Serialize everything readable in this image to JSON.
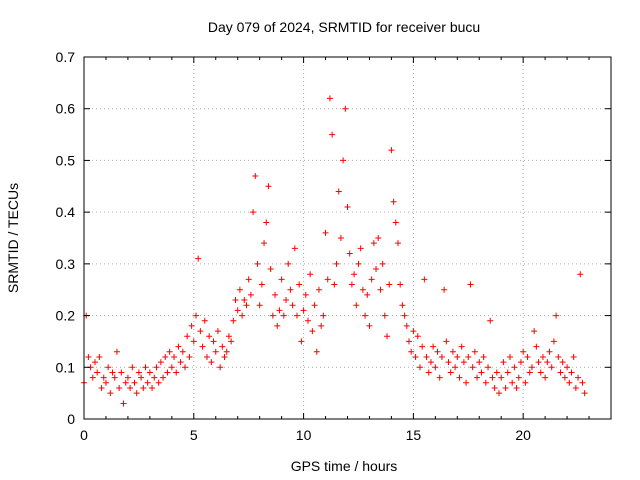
{
  "chart_data": {
    "type": "scatter",
    "title": "Day 079 of 2024, SRMTID for receiver bucu",
    "xlabel": "GPS time / hours",
    "ylabel": "SRMTID / TECUs",
    "xlim": [
      0,
      24
    ],
    "ylim": [
      0,
      0.7
    ],
    "xticks": [
      0,
      5,
      10,
      15,
      20
    ],
    "xtick_labels": [
      "0",
      "5",
      "10",
      "15",
      "20"
    ],
    "yticks": [
      0,
      0.1,
      0.2,
      0.3,
      0.4,
      0.5,
      0.6,
      0.7
    ],
    "ytick_labels": [
      "0",
      "0.1",
      "0.2",
      "0.3",
      "0.4",
      "0.5",
      "0.6",
      "0.7"
    ],
    "grid": true,
    "marker": "+",
    "color": "#ff0000",
    "series": [
      {
        "name": "SRMTID",
        "x": [
          0.0,
          0.1,
          0.2,
          0.3,
          0.4,
          0.5,
          0.6,
          0.7,
          0.8,
          0.9,
          1.0,
          1.1,
          1.2,
          1.3,
          1.4,
          1.5,
          1.6,
          1.7,
          1.8,
          1.9,
          2.0,
          2.1,
          2.2,
          2.3,
          2.4,
          2.5,
          2.6,
          2.7,
          2.8,
          2.9,
          3.0,
          3.1,
          3.2,
          3.3,
          3.4,
          3.5,
          3.6,
          3.7,
          3.8,
          3.9,
          4.0,
          4.1,
          4.2,
          4.3,
          4.4,
          4.5,
          4.6,
          4.7,
          4.8,
          4.9,
          5.0,
          5.1,
          5.2,
          5.3,
          5.4,
          5.5,
          5.6,
          5.7,
          5.8,
          5.9,
          6.0,
          6.1,
          6.2,
          6.3,
          6.4,
          6.5,
          6.6,
          6.7,
          6.8,
          6.9,
          7.0,
          7.1,
          7.2,
          7.3,
          7.4,
          7.5,
          7.6,
          7.7,
          7.8,
          7.9,
          8.0,
          8.1,
          8.2,
          8.3,
          8.4,
          8.5,
          8.6,
          8.7,
          8.8,
          8.9,
          9.0,
          9.1,
          9.2,
          9.3,
          9.4,
          9.5,
          9.6,
          9.7,
          9.8,
          9.9,
          10.0,
          10.1,
          10.2,
          10.3,
          10.4,
          10.5,
          10.6,
          10.7,
          10.8,
          10.9,
          11.0,
          11.1,
          11.2,
          11.3,
          11.4,
          11.5,
          11.6,
          11.7,
          11.8,
          11.9,
          12.0,
          12.1,
          12.2,
          12.3,
          12.4,
          12.5,
          12.6,
          12.7,
          12.8,
          12.9,
          13.0,
          13.1,
          13.2,
          13.3,
          13.4,
          13.5,
          13.6,
          13.7,
          13.8,
          13.9,
          14.0,
          14.1,
          14.2,
          14.3,
          14.4,
          14.5,
          14.6,
          14.7,
          14.8,
          14.9,
          15.0,
          15.1,
          15.2,
          15.3,
          15.4,
          15.5,
          15.6,
          15.7,
          15.8,
          15.9,
          16.0,
          16.1,
          16.2,
          16.3,
          16.4,
          16.5,
          16.6,
          16.7,
          16.8,
          16.9,
          17.0,
          17.1,
          17.2,
          17.3,
          17.4,
          17.5,
          17.6,
          17.7,
          17.8,
          17.9,
          18.0,
          18.1,
          18.2,
          18.3,
          18.4,
          18.5,
          18.6,
          18.7,
          18.8,
          18.9,
          19.0,
          19.1,
          19.2,
          19.3,
          19.4,
          19.5,
          19.6,
          19.7,
          19.8,
          19.9,
          20.0,
          20.1,
          20.2,
          20.3,
          20.4,
          20.5,
          20.6,
          20.7,
          20.8,
          20.9,
          21.0,
          21.1,
          21.2,
          21.3,
          21.4,
          21.5,
          21.6,
          21.7,
          21.8,
          21.9,
          22.0,
          22.1,
          22.2,
          22.3,
          22.4,
          22.5,
          22.6,
          22.7,
          22.8
        ],
        "y": [
          0.07,
          0.2,
          0.12,
          0.1,
          0.08,
          0.11,
          0.09,
          0.12,
          0.06,
          0.08,
          0.07,
          0.1,
          0.05,
          0.09,
          0.08,
          0.13,
          0.06,
          0.09,
          0.03,
          0.07,
          0.08,
          0.06,
          0.1,
          0.07,
          0.05,
          0.09,
          0.08,
          0.06,
          0.1,
          0.07,
          0.09,
          0.06,
          0.08,
          0.1,
          0.07,
          0.11,
          0.08,
          0.12,
          0.09,
          0.13,
          0.1,
          0.12,
          0.09,
          0.14,
          0.11,
          0.13,
          0.1,
          0.16,
          0.12,
          0.18,
          0.15,
          0.2,
          0.31,
          0.17,
          0.14,
          0.19,
          0.12,
          0.16,
          0.11,
          0.15,
          0.13,
          0.17,
          0.1,
          0.14,
          0.12,
          0.13,
          0.16,
          0.15,
          0.19,
          0.23,
          0.21,
          0.25,
          0.2,
          0.23,
          0.22,
          0.27,
          0.24,
          0.4,
          0.47,
          0.3,
          0.22,
          0.26,
          0.34,
          0.38,
          0.45,
          0.29,
          0.2,
          0.24,
          0.18,
          0.21,
          0.27,
          0.2,
          0.23,
          0.3,
          0.25,
          0.22,
          0.33,
          0.2,
          0.26,
          0.15,
          0.21,
          0.24,
          0.19,
          0.28,
          0.17,
          0.22,
          0.13,
          0.25,
          0.18,
          0.2,
          0.36,
          0.27,
          0.62,
          0.55,
          0.26,
          0.3,
          0.44,
          0.35,
          0.5,
          0.6,
          0.41,
          0.32,
          0.26,
          0.28,
          0.22,
          0.3,
          0.33,
          0.25,
          0.2,
          0.24,
          0.18,
          0.27,
          0.34,
          0.29,
          0.35,
          0.25,
          0.3,
          0.2,
          0.16,
          0.26,
          0.52,
          0.42,
          0.38,
          0.34,
          0.26,
          0.22,
          0.2,
          0.18,
          0.15,
          0.13,
          0.17,
          0.12,
          0.16,
          0.1,
          0.14,
          0.27,
          0.12,
          0.09,
          0.11,
          0.14,
          0.1,
          0.13,
          0.08,
          0.12,
          0.25,
          0.15,
          0.11,
          0.09,
          0.13,
          0.1,
          0.12,
          0.08,
          0.14,
          0.11,
          0.07,
          0.12,
          0.26,
          0.1,
          0.13,
          0.08,
          0.11,
          0.09,
          0.12,
          0.07,
          0.1,
          0.19,
          0.08,
          0.06,
          0.09,
          0.05,
          0.08,
          0.11,
          0.06,
          0.09,
          0.12,
          0.07,
          0.1,
          0.06,
          0.08,
          0.11,
          0.13,
          0.07,
          0.12,
          0.09,
          0.1,
          0.17,
          0.14,
          0.11,
          0.09,
          0.12,
          0.08,
          0.11,
          0.13,
          0.1,
          0.15,
          0.2,
          0.12,
          0.09,
          0.11,
          0.08,
          0.1,
          0.07,
          0.09,
          0.12,
          0.06,
          0.08,
          0.28,
          0.07,
          0.05
        ]
      }
    ]
  }
}
